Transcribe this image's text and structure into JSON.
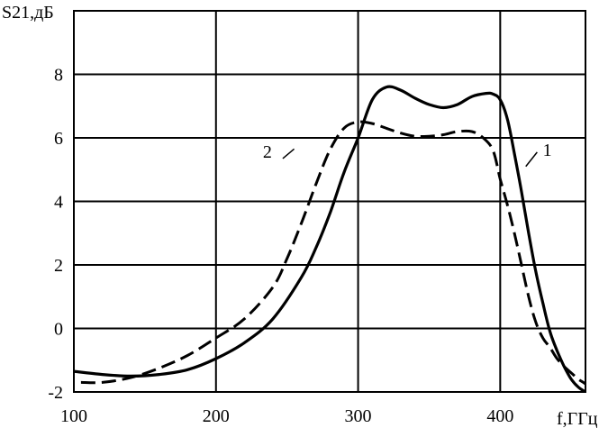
{
  "chart_data": {
    "type": "line",
    "title": "",
    "ylabel": "S21,дБ",
    "xlabel": "f,ГГц",
    "xlim": [
      100,
      460
    ],
    "ylim": [
      -2,
      10
    ],
    "grid": true,
    "x_ticks": [
      100,
      200,
      300,
      400
    ],
    "y_ticks": [
      -2,
      0,
      2,
      4,
      6,
      8
    ],
    "series": [
      {
        "name": "1",
        "style": "solid",
        "color": "#000000",
        "points": [
          [
            100,
            -1.35
          ],
          [
            120,
            -1.45
          ],
          [
            140,
            -1.5
          ],
          [
            160,
            -1.45
          ],
          [
            180,
            -1.3
          ],
          [
            200,
            -0.95
          ],
          [
            220,
            -0.45
          ],
          [
            240,
            0.3
          ],
          [
            260,
            1.6
          ],
          [
            270,
            2.5
          ],
          [
            280,
            3.6
          ],
          [
            290,
            4.9
          ],
          [
            300,
            6.0
          ],
          [
            310,
            7.2
          ],
          [
            320,
            7.6
          ],
          [
            330,
            7.5
          ],
          [
            340,
            7.25
          ],
          [
            350,
            7.05
          ],
          [
            360,
            6.95
          ],
          [
            370,
            7.05
          ],
          [
            380,
            7.3
          ],
          [
            390,
            7.4
          ],
          [
            395,
            7.38
          ],
          [
            400,
            7.2
          ],
          [
            405,
            6.6
          ],
          [
            410,
            5.5
          ],
          [
            415,
            4.3
          ],
          [
            420,
            3.0
          ],
          [
            425,
            1.8
          ],
          [
            430,
            0.8
          ],
          [
            435,
            -0.1
          ],
          [
            440,
            -0.7
          ],
          [
            445,
            -1.2
          ],
          [
            450,
            -1.6
          ],
          [
            455,
            -1.85
          ],
          [
            460,
            -2.0
          ]
        ]
      },
      {
        "name": "2",
        "style": "dashed",
        "color": "#000000",
        "points": [
          [
            105,
            -1.7
          ],
          [
            120,
            -1.7
          ],
          [
            140,
            -1.55
          ],
          [
            160,
            -1.25
          ],
          [
            180,
            -0.85
          ],
          [
            200,
            -0.3
          ],
          [
            220,
            0.3
          ],
          [
            240,
            1.3
          ],
          [
            250,
            2.2
          ],
          [
            260,
            3.3
          ],
          [
            270,
            4.5
          ],
          [
            280,
            5.6
          ],
          [
            290,
            6.3
          ],
          [
            300,
            6.5
          ],
          [
            310,
            6.45
          ],
          [
            320,
            6.3
          ],
          [
            330,
            6.15
          ],
          [
            340,
            6.05
          ],
          [
            350,
            6.05
          ],
          [
            360,
            6.1
          ],
          [
            370,
            6.2
          ],
          [
            380,
            6.2
          ],
          [
            388,
            6.0
          ],
          [
            395,
            5.6
          ],
          [
            400,
            4.7
          ],
          [
            405,
            3.9
          ],
          [
            410,
            3.0
          ],
          [
            415,
            2.0
          ],
          [
            420,
            1.0
          ],
          [
            425,
            0.2
          ],
          [
            430,
            -0.3
          ],
          [
            435,
            -0.6
          ],
          [
            440,
            -0.95
          ],
          [
            445,
            -1.2
          ],
          [
            450,
            -1.4
          ],
          [
            455,
            -1.6
          ],
          [
            460,
            -1.75
          ],
          [
            465,
            -2.0
          ]
        ]
      }
    ],
    "annotations": [
      {
        "text": "1",
        "series": "1",
        "near_x": 415,
        "near_y": 6.3
      },
      {
        "text": "2",
        "series": "2",
        "near_x": 240,
        "near_y": 5.6
      }
    ]
  }
}
